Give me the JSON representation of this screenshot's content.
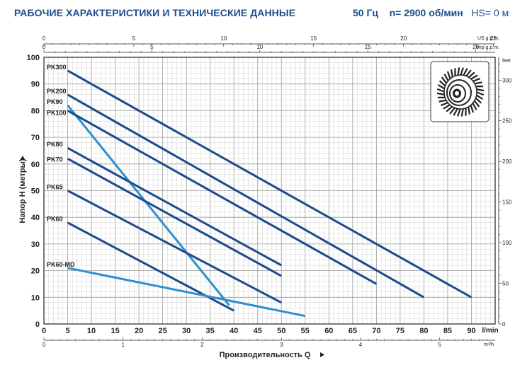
{
  "header": {
    "title": "РАБОЧИЕ ХАРАКТЕРИСТИКИ И ТЕХНИЧЕСКИЕ ДАННЫЕ",
    "freq": "50 Гц",
    "speed": "n= 2900 об/мин",
    "hs": "HS= 0 м"
  },
  "chart_data": {
    "type": "line",
    "xlabel": "Производительность Q",
    "ylabel": "Напор H (метры)",
    "x_unit_main": "l/min",
    "x_unit_m3h": "m³/h",
    "x_unit_us": "US g.p.m.",
    "x_unit_imp": "Imp g.p.m.",
    "y_unit_right": "feet",
    "xlim": [
      0,
      95
    ],
    "ylim": [
      0,
      100
    ],
    "grid": true,
    "x_ticks_lmin": [
      0,
      5,
      10,
      15,
      20,
      25,
      30,
      35,
      40,
      45,
      50,
      55,
      60,
      65,
      70,
      75,
      80,
      85,
      90
    ],
    "x_ticks_m3h": [
      0,
      1,
      2,
      3,
      4,
      5
    ],
    "x_ticks_us": [
      0,
      5,
      10,
      15,
      20,
      25
    ],
    "x_ticks_imp": [
      0,
      5,
      10,
      15,
      20
    ],
    "y_ticks": [
      0,
      10,
      20,
      30,
      40,
      50,
      60,
      70,
      80,
      90,
      100
    ],
    "y_ticks_feet": [
      0,
      50,
      100,
      150,
      200,
      250,
      300
    ],
    "series": [
      {
        "name": "PK300",
        "color": "#1b4b8c",
        "x": [
          5,
          90
        ],
        "y": [
          95,
          10
        ]
      },
      {
        "name": "PK200",
        "color": "#1b4b8c",
        "x": [
          5,
          80
        ],
        "y": [
          86,
          10
        ]
      },
      {
        "name": "PK90",
        "color": "#2e8fce",
        "x": [
          5,
          39
        ],
        "y": [
          82,
          7
        ]
      },
      {
        "name": "PK100",
        "color": "#1b4b8c",
        "x": [
          5,
          70
        ],
        "y": [
          80,
          15
        ]
      },
      {
        "name": "PK80",
        "color": "#1b4b8c",
        "x": [
          5,
          50
        ],
        "y": [
          66,
          22
        ]
      },
      {
        "name": "PK70",
        "color": "#1b4b8c",
        "x": [
          5,
          50
        ],
        "y": [
          62,
          18
        ]
      },
      {
        "name": "PK65",
        "color": "#1b4b8c",
        "x": [
          5,
          50
        ],
        "y": [
          50,
          8
        ]
      },
      {
        "name": "PK60",
        "color": "#1b4b8c",
        "x": [
          5,
          40
        ],
        "y": [
          38,
          5
        ]
      },
      {
        "name": "PK60-MD",
        "color": "#2e8fce",
        "x": [
          5,
          55
        ],
        "y": [
          21,
          3
        ]
      }
    ]
  }
}
